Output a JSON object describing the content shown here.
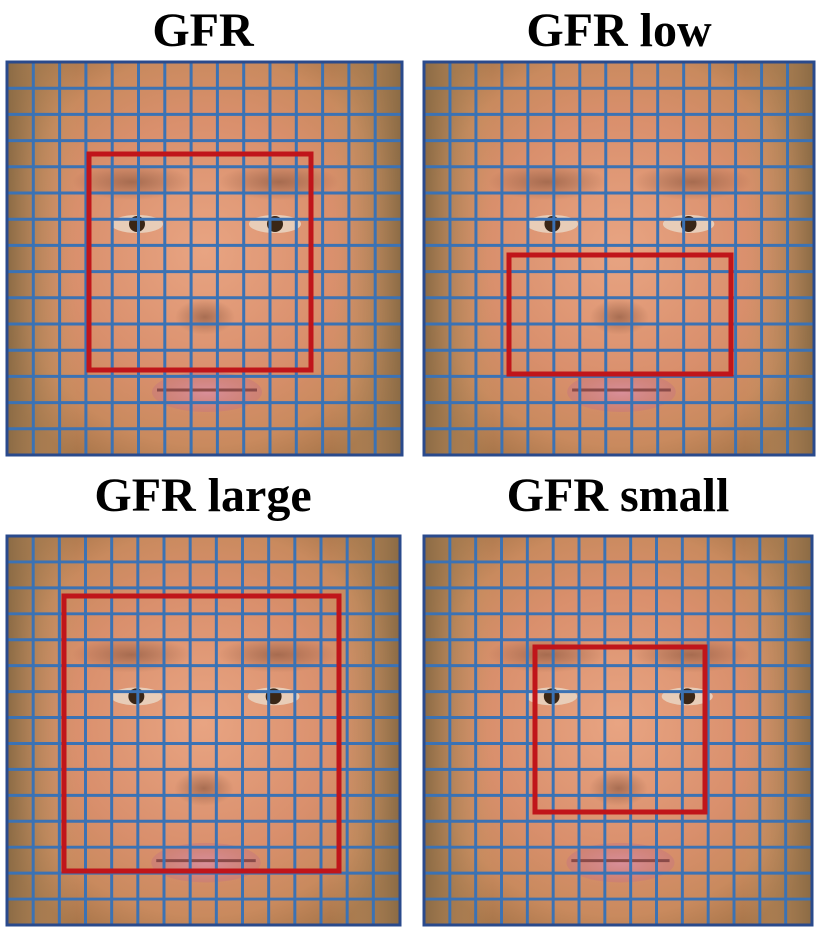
{
  "panels": [
    {
      "title": "GFR"
    },
    {
      "title": "GFR low"
    },
    {
      "title": "GFR large"
    },
    {
      "title": "GFR small"
    }
  ]
}
